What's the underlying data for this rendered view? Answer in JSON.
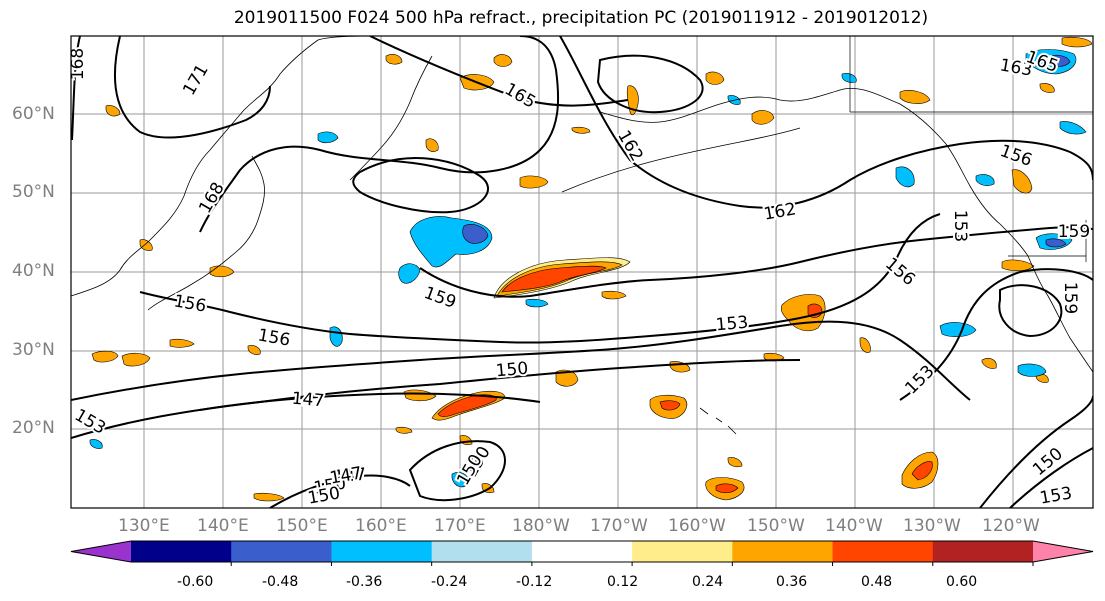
{
  "title": "2019011500 F024 500 hPa refract., precipitation PC (2019011912 - 2019012012)",
  "lat_labels": [
    "60°N",
    "50°N",
    "40°N",
    "30°N",
    "20°N"
  ],
  "lon_labels": [
    "130°E",
    "140°E",
    "150°E",
    "160°E",
    "170°E",
    "180°W",
    "170°W",
    "160°W",
    "150°W",
    "140°W",
    "130°W",
    "120°W"
  ],
  "contour_labels": [
    "171",
    "168",
    "168",
    "165",
    "162",
    "162",
    "156",
    "159",
    "159",
    "156",
    "156",
    "153",
    "153",
    "150",
    "147",
    "147",
    "153",
    "150",
    "159",
    "156",
    "153",
    "153",
    "150",
    "150",
    "150",
    "147",
    "163",
    "165",
    "150"
  ],
  "colorbar": {
    "ticks": [
      "-0.60",
      "-0.48",
      "-0.36",
      "-0.24",
      "-0.12",
      "0.12",
      "0.24",
      "0.36",
      "0.48",
      "0.60"
    ],
    "colors": [
      "#9a32cd",
      "#00008b",
      "#3a5fcd",
      "#00bfff",
      "#b2dfee",
      "#ffffff",
      "#ffec8b",
      "#ffa500",
      "#ff4500",
      "#b22222",
      "#ff82ab"
    ]
  },
  "legend_colors": {
    "neg_strong": "#3a5fcd",
    "neg_mid": "#00bfff",
    "neg_weak": "#b2dfee",
    "pos_weak": "#ffec8b",
    "pos_mid": "#ffa500",
    "pos_strong": "#ff4500"
  }
}
